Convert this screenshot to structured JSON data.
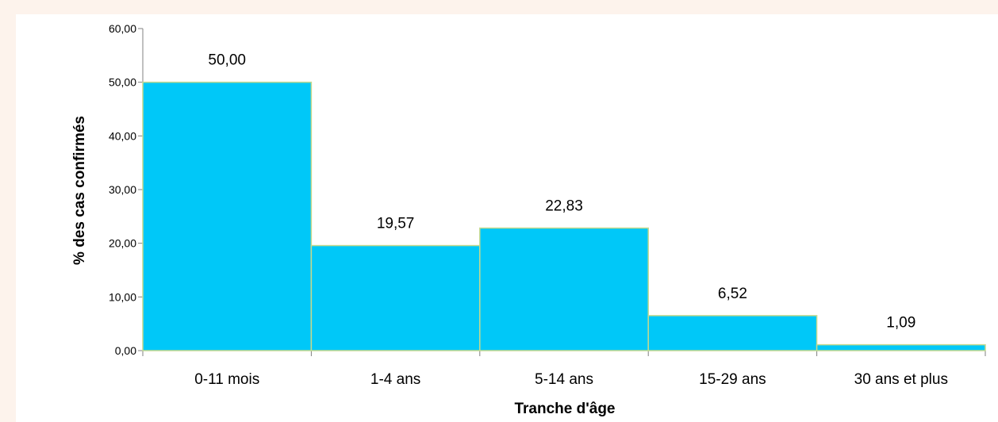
{
  "chart_data": {
    "type": "bar",
    "xlabel": "Tranche d'âge",
    "ylabel": "% des cas confirmés",
    "ylim": [
      0,
      60
    ],
    "yticks": [
      "0,00",
      "10,00",
      "20,00",
      "30,00",
      "40,00",
      "50,00",
      "60,00"
    ],
    "categories": [
      "0-11 mois",
      "1-4 ans",
      "5-14 ans",
      "15-29 ans",
      "30 ans et plus"
    ],
    "values": [
      50.0,
      19.57,
      22.83,
      6.52,
      1.09
    ],
    "value_labels": [
      "50,00",
      "19,57",
      "22,83",
      "6,52",
      "1,09"
    ],
    "bar_color": "#00c8f8",
    "bar_edge_color": "#c5d98e",
    "grid": false,
    "legend": "none"
  }
}
